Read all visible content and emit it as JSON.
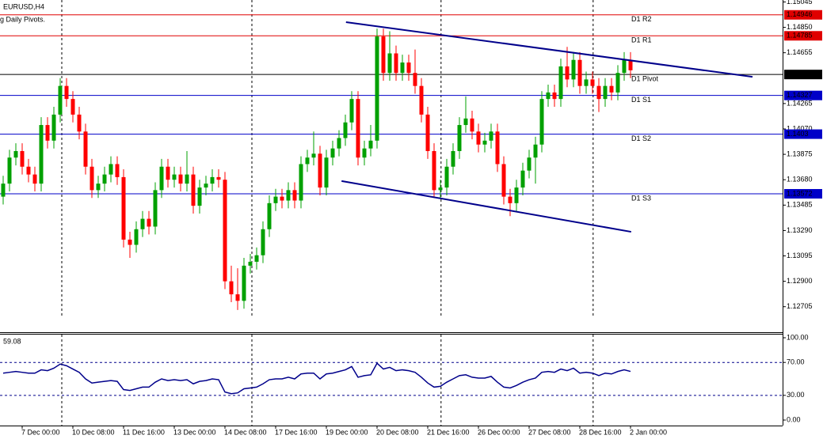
{
  "chart_data": [
    {
      "type": "candlestick",
      "title": "EURUSD,H4",
      "subtitle": "g Daily Pivots.",
      "categories": [
        null,
        null,
        null,
        "7 Dec 00:00",
        null,
        null,
        null,
        null,
        null,
        null,
        null,
        "10 Dec 08:00",
        null,
        null,
        null,
        null,
        null,
        null,
        null,
        "11 Dec 16:00",
        null,
        null,
        null,
        null,
        null,
        null,
        null,
        "13 Dec 00:00",
        null,
        null,
        null,
        null,
        null,
        null,
        null,
        "14 Dec 08:00",
        null,
        null,
        null,
        null,
        null,
        null,
        null,
        "17 Dec 16:00",
        null,
        null,
        null,
        null,
        null,
        null,
        null,
        "19 Dec 00:00",
        null,
        null,
        null,
        null,
        null,
        null,
        null,
        "20 Dec 08:00",
        null,
        null,
        null,
        null,
        null,
        null,
        null,
        "21 Dec 16:00",
        null,
        null,
        null,
        null,
        null,
        null,
        null,
        "26 Dec 00:00",
        null,
        null,
        null,
        null,
        null,
        null,
        null,
        "27 Dec 08:00",
        null,
        null,
        null,
        null,
        null,
        null,
        null,
        "28 Dec 16:00",
        null,
        null,
        null,
        null,
        null,
        null,
        null,
        "2 Jan 00:00"
      ],
      "open": [
        1.1355,
        1.1365,
        1.1385,
        1.139,
        1.1378,
        1.1372,
        1.1365,
        1.141,
        1.1398,
        1.1418,
        1.144,
        1.143,
        1.1418,
        1.1405,
        1.1378,
        1.136,
        1.1365,
        1.1372,
        1.138,
        1.137,
        1.1322,
        1.1318,
        1.133,
        1.1338,
        1.1332,
        1.136,
        1.1378,
        1.1368,
        1.1372,
        1.1365,
        1.1372,
        1.1348,
        1.1362,
        1.1365,
        1.137,
        1.1368,
        1.129,
        1.128,
        1.1275,
        1.1302,
        1.1305,
        1.131,
        1.133,
        1.135,
        1.1355,
        1.1352,
        1.136,
        1.1352,
        1.138,
        1.1385,
        1.1388,
        1.1362,
        1.1385,
        1.1392,
        1.14,
        1.1412,
        1.143,
        1.1385,
        1.1392,
        1.1398,
        1.1478,
        1.145,
        1.1465,
        1.145,
        1.1458,
        1.145,
        1.144,
        1.1418,
        1.139,
        1.136,
        1.1362,
        1.1378,
        1.139,
        1.141,
        1.1415,
        1.1405,
        1.1395,
        1.1398,
        1.1405,
        1.138,
        1.1355,
        1.135,
        1.1362,
        1.1375,
        1.1385,
        1.1395,
        1.143,
        1.1435,
        1.143,
        1.1455,
        1.1445,
        1.146,
        1.144,
        1.1445,
        1.144,
        1.143,
        1.144,
        1.1435,
        1.145,
        1.146
      ],
      "high": [
        1.1371,
        1.1391,
        1.1396,
        1.1396,
        1.1384,
        1.1378,
        1.1416,
        1.1416,
        1.1424,
        1.1446,
        1.1446,
        1.1436,
        1.1424,
        1.1411,
        1.1384,
        1.1371,
        1.1378,
        1.1386,
        1.1386,
        1.1376,
        1.1328,
        1.1336,
        1.1344,
        1.1344,
        1.1366,
        1.1384,
        1.1384,
        1.1378,
        1.1378,
        1.139,
        1.1378,
        1.1368,
        1.1371,
        1.1376,
        1.1376,
        1.1374,
        1.1302,
        1.13,
        1.1308,
        1.1311,
        1.1316,
        1.1336,
        1.1356,
        1.1361,
        1.1361,
        1.1366,
        1.1366,
        1.1386,
        1.1391,
        1.1405,
        1.1394,
        1.1391,
        1.1398,
        1.1406,
        1.1418,
        1.1436,
        1.1436,
        1.1398,
        1.141,
        1.1484,
        1.1484,
        1.1482,
        1.1471,
        1.1464,
        1.1464,
        1.1468,
        1.1446,
        1.1424,
        1.1396,
        1.1368,
        1.1384,
        1.1396,
        1.1416,
        1.1432,
        1.1421,
        1.1411,
        1.1404,
        1.1411,
        1.1411,
        1.1386,
        1.1361,
        1.1368,
        1.1381,
        1.1391,
        1.1401,
        1.1436,
        1.1441,
        1.1441,
        1.1461,
        1.147,
        1.1466,
        1.1466,
        1.1451,
        1.1451,
        1.1446,
        1.1446,
        1.1446,
        1.1456,
        1.1466,
        1.1466
      ],
      "low": [
        1.1349,
        1.1359,
        1.1379,
        1.1372,
        1.1366,
        1.1359,
        1.1359,
        1.1392,
        1.1392,
        1.1412,
        1.1424,
        1.1412,
        1.1399,
        1.1372,
        1.1354,
        1.1354,
        1.1359,
        1.1366,
        1.1364,
        1.1316,
        1.1308,
        1.1312,
        1.1324,
        1.1326,
        1.1326,
        1.1354,
        1.1362,
        1.1362,
        1.1359,
        1.1359,
        1.1342,
        1.1342,
        1.1356,
        1.1359,
        1.1362,
        1.1284,
        1.1274,
        1.1268,
        1.1269,
        1.1296,
        1.1299,
        1.1304,
        1.1324,
        1.1344,
        1.1346,
        1.1346,
        1.1346,
        1.1346,
        1.1374,
        1.1379,
        1.1356,
        1.1356,
        1.1379,
        1.1386,
        1.1394,
        1.1406,
        1.1379,
        1.1379,
        1.1386,
        1.1392,
        1.1444,
        1.1444,
        1.1444,
        1.1444,
        1.1444,
        1.1434,
        1.1412,
        1.1384,
        1.1354,
        1.1354,
        1.1356,
        1.1372,
        1.1384,
        1.1404,
        1.1399,
        1.1389,
        1.1389,
        1.1392,
        1.1374,
        1.1349,
        1.134,
        1.1344,
        1.1356,
        1.1369,
        1.1365,
        1.1389,
        1.1424,
        1.1424,
        1.1424,
        1.1439,
        1.1439,
        1.1434,
        1.1434,
        1.1434,
        1.142,
        1.1424,
        1.1429,
        1.1429,
        1.1444,
        1.1446
      ],
      "close": [
        1.1365,
        1.1385,
        1.139,
        1.1378,
        1.1372,
        1.1365,
        1.141,
        1.1398,
        1.1418,
        1.144,
        1.143,
        1.1418,
        1.1405,
        1.1378,
        1.136,
        1.1365,
        1.1372,
        1.138,
        1.137,
        1.1322,
        1.1318,
        1.133,
        1.1338,
        1.1332,
        1.136,
        1.1378,
        1.1368,
        1.1372,
        1.1365,
        1.1372,
        1.1348,
        1.1362,
        1.1365,
        1.137,
        1.1368,
        1.129,
        1.128,
        1.1275,
        1.1302,
        1.1305,
        1.131,
        1.133,
        1.135,
        1.1355,
        1.1352,
        1.136,
        1.1352,
        1.138,
        1.1385,
        1.1388,
        1.1362,
        1.1385,
        1.1392,
        1.14,
        1.1412,
        1.143,
        1.1385,
        1.1392,
        1.1398,
        1.1478,
        1.145,
        1.1465,
        1.145,
        1.1458,
        1.145,
        1.144,
        1.1418,
        1.139,
        1.136,
        1.1362,
        1.1378,
        1.139,
        1.141,
        1.1415,
        1.1405,
        1.1395,
        1.1398,
        1.1405,
        1.138,
        1.1355,
        1.135,
        1.1362,
        1.1375,
        1.1385,
        1.1395,
        1.143,
        1.1435,
        1.143,
        1.1455,
        1.1445,
        1.146,
        1.144,
        1.1445,
        1.144,
        1.143,
        1.144,
        1.1435,
        1.145,
        1.146,
        1.1452
      ],
      "up_color": "#00a000",
      "down_color": "#ff0000",
      "ylim": [
        1.12509,
        1.1506
      ],
      "yticks": [
        {
          "value": 1.15045,
          "label": "1.15045"
        },
        {
          "value": 1.1485,
          "label": "1.14850"
        },
        {
          "value": 1.14655,
          "label": "1.14655"
        },
        {
          "value": 1.14265,
          "label": "1.14265"
        },
        {
          "value": 1.1407,
          "label": "1.14070"
        },
        {
          "value": 1.13875,
          "label": "1.13875"
        },
        {
          "value": 1.1368,
          "label": "1.13680"
        },
        {
          "value": 1.13485,
          "label": "1.13485"
        },
        {
          "value": 1.1329,
          "label": "1.13290"
        },
        {
          "value": 1.13095,
          "label": "1.13095"
        },
        {
          "value": 1.129,
          "label": "1.12900"
        },
        {
          "value": 1.12705,
          "label": "1.12705"
        }
      ],
      "pivots": [
        {
          "name": "D1 R2",
          "value": 1.14946,
          "color": "#e00000"
        },
        {
          "name": "D1 R1",
          "value": 1.14785,
          "color": "#e00000"
        },
        {
          "name": "D1 Pivot",
          "value": 1.14488,
          "color": "#000000"
        },
        {
          "name": "D1 S1",
          "value": 1.14327,
          "color": "#0000c8"
        },
        {
          "name": "D1 S2",
          "value": 1.1403,
          "color": "#0000c8"
        },
        {
          "name": "D1 S3",
          "value": 1.13572,
          "color": "#0000c8"
        }
      ],
      "trendlines": [
        {
          "x": [
            54.1,
            118.25
          ],
          "y": [
            1.1489,
            1.1447
          ],
          "color": "#00008b"
        },
        {
          "x": [
            53.4,
            99.1
          ],
          "y": [
            1.1367,
            1.1328
          ],
          "color": "#00008b"
        }
      ],
      "separators": [
        9.25,
        39.25,
        69.1,
        93.1
      ]
    },
    {
      "type": "line",
      "color": "#00008b",
      "values": [
        57,
        58,
        59,
        58,
        57,
        57,
        61,
        60,
        63,
        68,
        66,
        62,
        58,
        50,
        45,
        46,
        47,
        48,
        47,
        37,
        36,
        38,
        40,
        40,
        46,
        50,
        48,
        49,
        48,
        49,
        44,
        47,
        48,
        50,
        49,
        34,
        32,
        33,
        38,
        39,
        40,
        44,
        49,
        50,
        50,
        52,
        50,
        56,
        57,
        57,
        50,
        56,
        57,
        59,
        61,
        65,
        52,
        54,
        55,
        69,
        62,
        64,
        60,
        61,
        60,
        58,
        52,
        45,
        40,
        41,
        46,
        50,
        54,
        55,
        52,
        51,
        51,
        53,
        46,
        40,
        39,
        42,
        46,
        49,
        51,
        58,
        59,
        58,
        62,
        60,
        63,
        57,
        58,
        57,
        54,
        57,
        56,
        59,
        61,
        59.08
      ],
      "ylim": [
        -6.7,
        104.8
      ],
      "yticks": [
        {
          "value": 100,
          "label": "100.00"
        },
        {
          "value": 70,
          "label": "70.00"
        },
        {
          "value": 30,
          "label": "30.00"
        },
        {
          "value": 0,
          "label": "0.00"
        }
      ],
      "levels": [
        70,
        30
      ]
    }
  ]
}
